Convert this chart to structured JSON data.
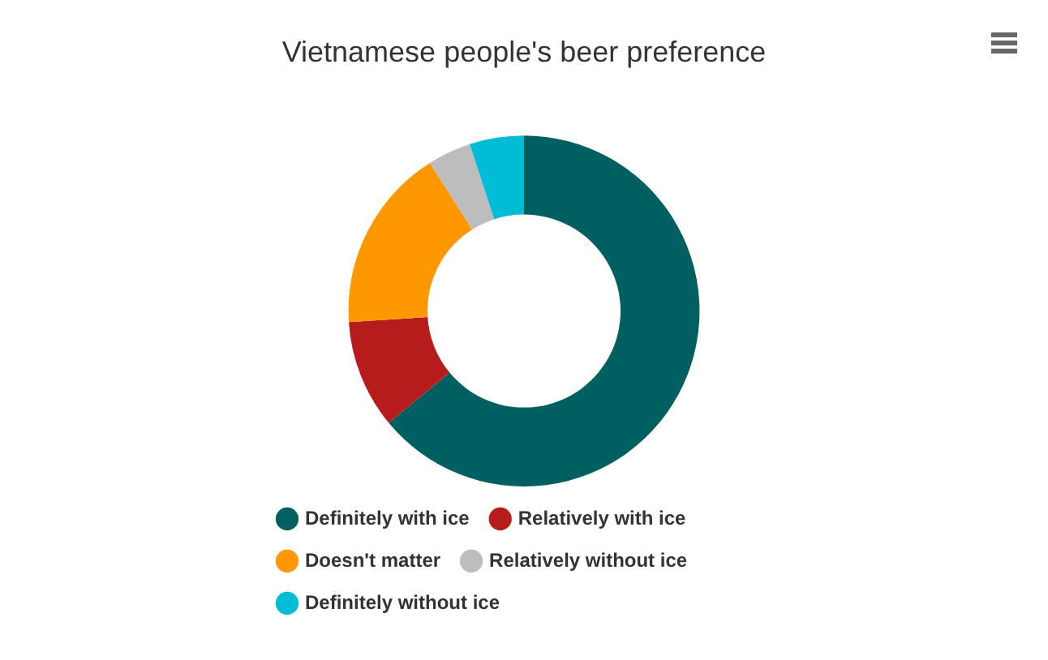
{
  "chart_data": {
    "type": "donut",
    "title": "Vietnamese people's beer preference",
    "categories": [
      "Definitely with ice",
      "Relatively with ice",
      "Doesn't matter",
      "Relatively without ice",
      "Definitely without ice"
    ],
    "values": [
      64,
      10,
      17,
      4,
      5
    ],
    "colors": [
      "#005f60",
      "#b71c1c",
      "#ff9800",
      "#bdbdbd",
      "#00bcd4"
    ],
    "legend": "bottom"
  }
}
